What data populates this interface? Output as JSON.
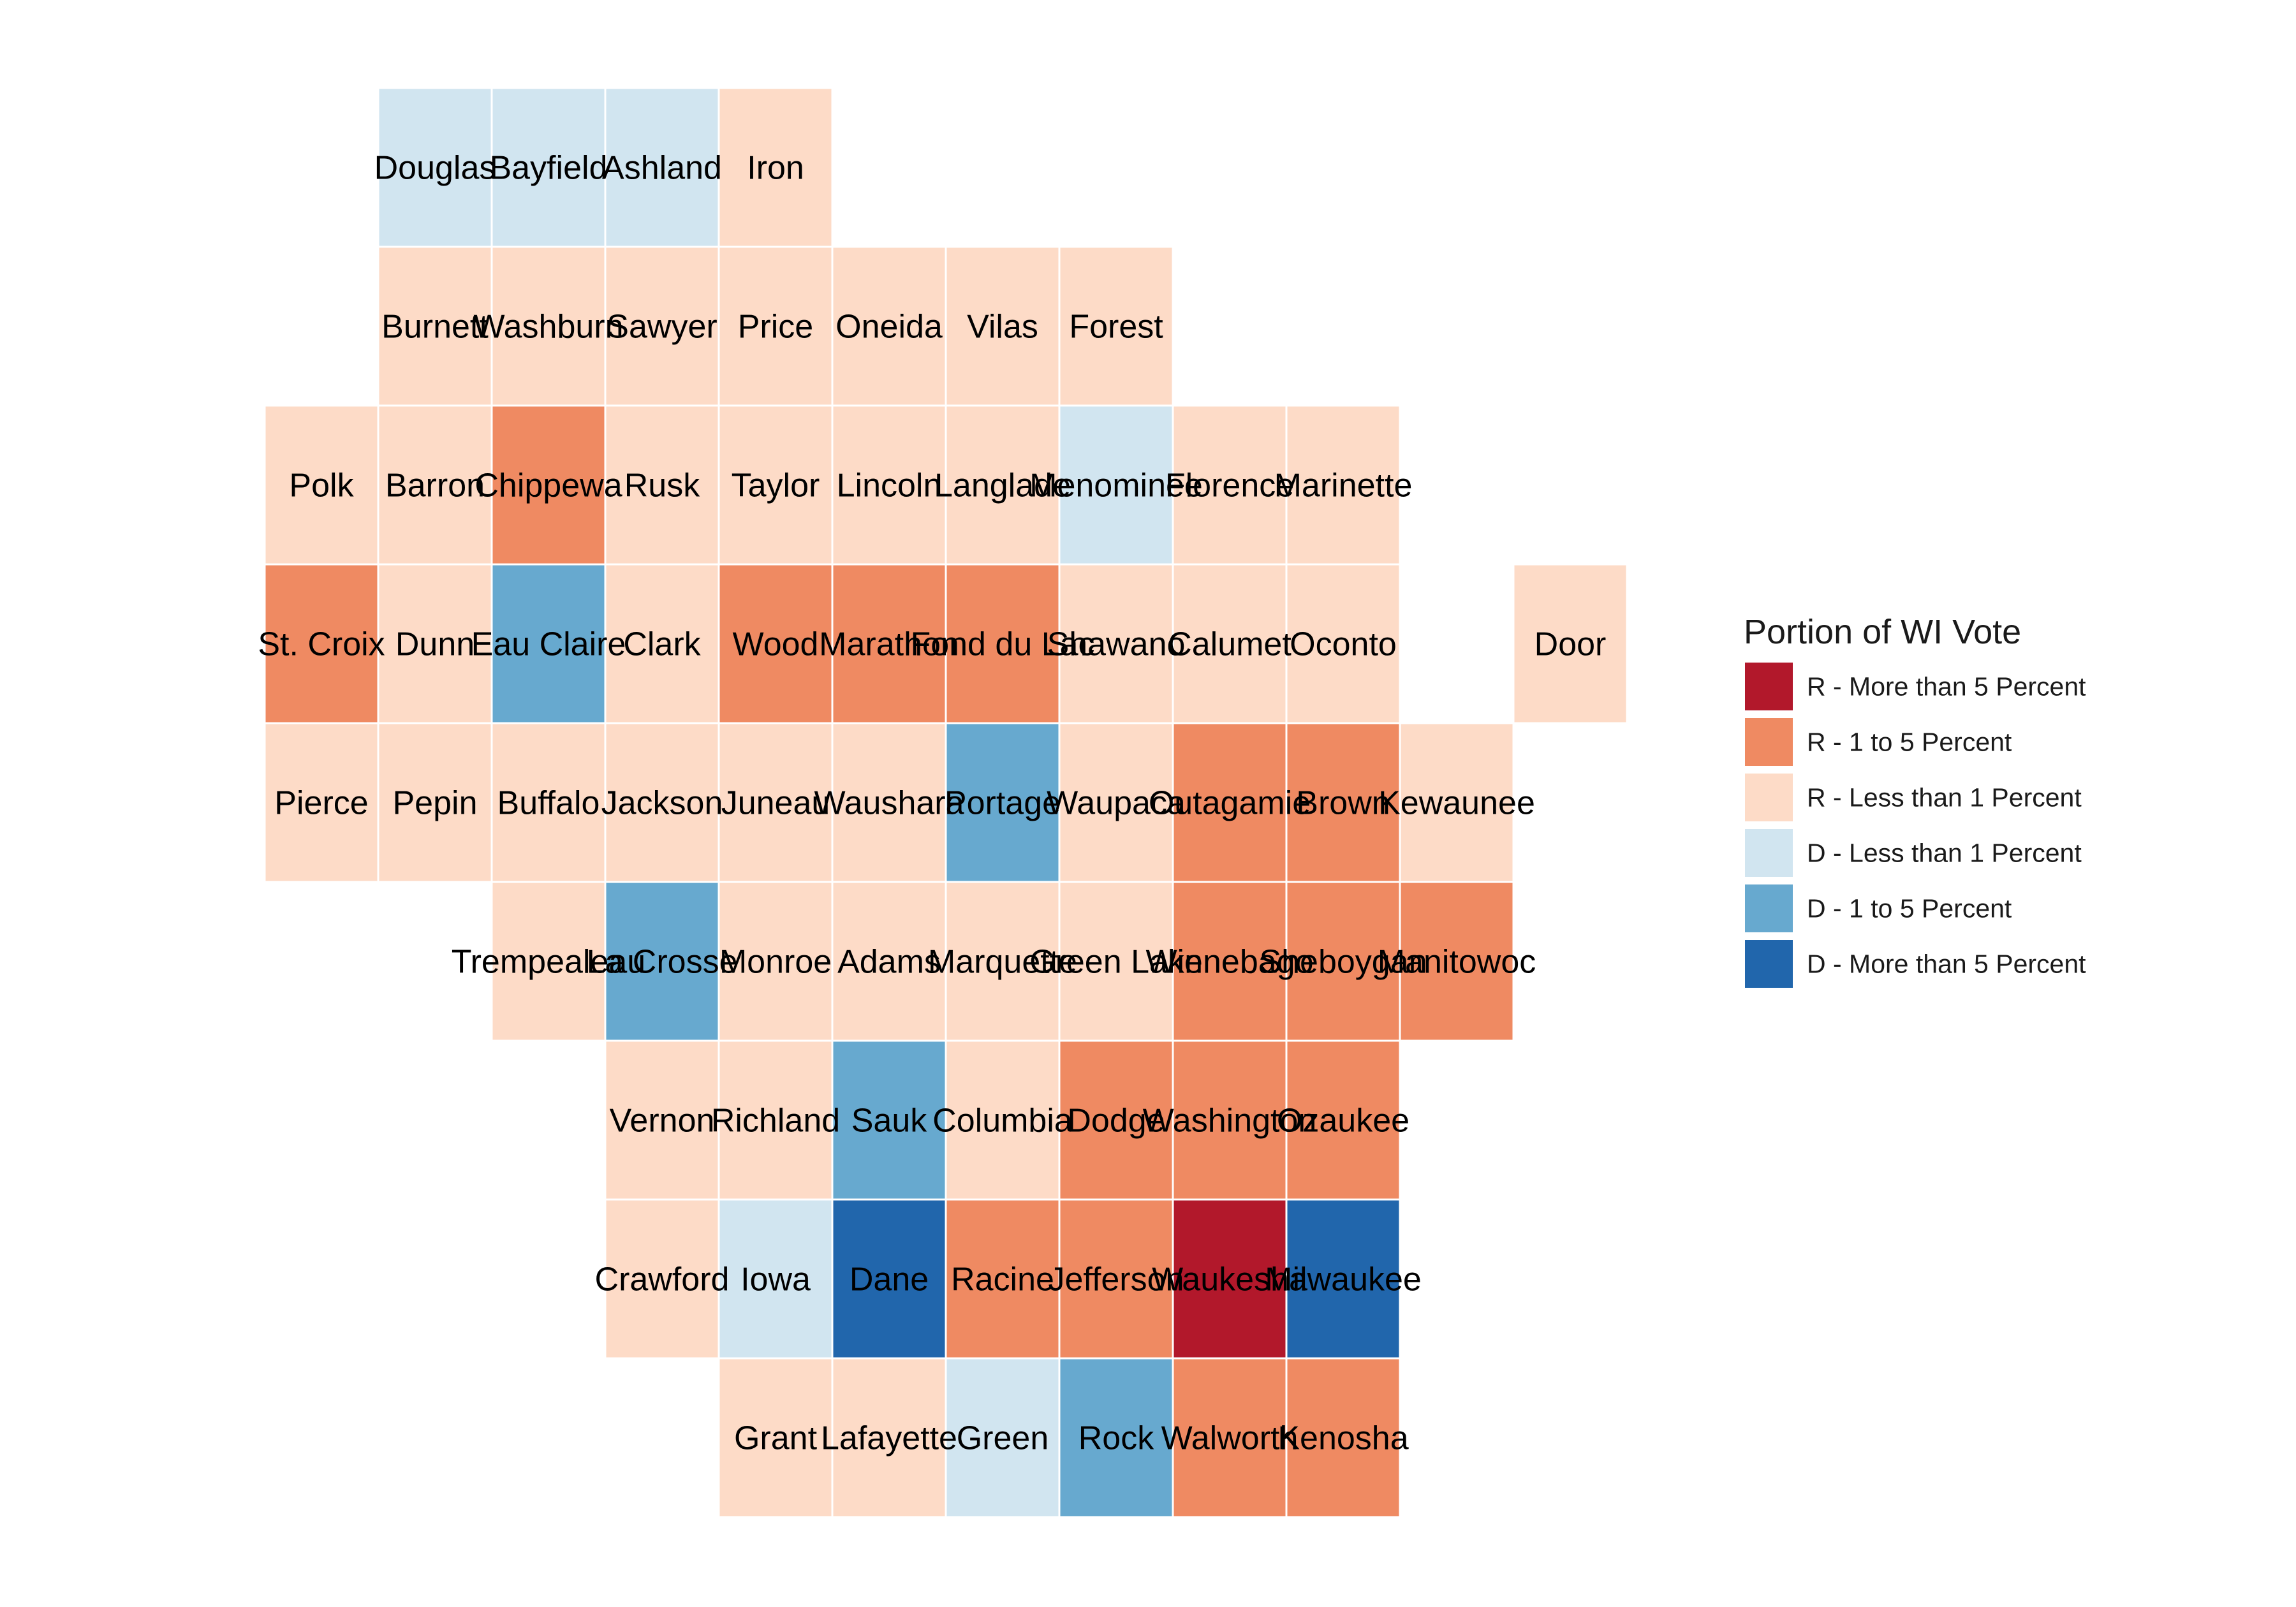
{
  "chart_data": {
    "type": "heatmap",
    "title": "",
    "xlabel": "",
    "ylabel": "",
    "grid": false,
    "legend_position": "right",
    "legend": {
      "title": "Portion of WI Vote",
      "categories": [
        {
          "key": "R5",
          "label": "R - More than 5 Percent",
          "color": "#b2182b"
        },
        {
          "key": "R1",
          "label": "R - 1 to 5 Percent",
          "color": "#ef8a62"
        },
        {
          "key": "R0",
          "label": "R - Less than 1 Percent",
          "color": "#fddbc7"
        },
        {
          "key": "D0",
          "label": "D - Less than 1 Percent",
          "color": "#d1e5f0"
        },
        {
          "key": "D1",
          "label": "D - 1 to 5 Percent",
          "color": "#67a9cf"
        },
        {
          "key": "D5",
          "label": "D - More than 5 Percent",
          "color": "#2166ac"
        }
      ]
    },
    "tiles": [
      {
        "county": "Douglas",
        "col": 1,
        "row": 0,
        "category": "D0"
      },
      {
        "county": "Bayfield",
        "col": 2,
        "row": 0,
        "category": "D0"
      },
      {
        "county": "Ashland",
        "col": 3,
        "row": 0,
        "category": "D0"
      },
      {
        "county": "Iron",
        "col": 4,
        "row": 0,
        "category": "R0"
      },
      {
        "county": "Burnett",
        "col": 1,
        "row": 1,
        "category": "R0"
      },
      {
        "county": "Washburn",
        "col": 2,
        "row": 1,
        "category": "R0"
      },
      {
        "county": "Sawyer",
        "col": 3,
        "row": 1,
        "category": "R0"
      },
      {
        "county": "Price",
        "col": 4,
        "row": 1,
        "category": "R0"
      },
      {
        "county": "Oneida",
        "col": 5,
        "row": 1,
        "category": "R0"
      },
      {
        "county": "Vilas",
        "col": 6,
        "row": 1,
        "category": "R0"
      },
      {
        "county": "Forest",
        "col": 7,
        "row": 1,
        "category": "R0"
      },
      {
        "county": "Polk",
        "col": 0,
        "row": 2,
        "category": "R0"
      },
      {
        "county": "Barron",
        "col": 1,
        "row": 2,
        "category": "R0"
      },
      {
        "county": "Chippewa",
        "col": 2,
        "row": 2,
        "category": "R1"
      },
      {
        "county": "Rusk",
        "col": 3,
        "row": 2,
        "category": "R0"
      },
      {
        "county": "Taylor",
        "col": 4,
        "row": 2,
        "category": "R0"
      },
      {
        "county": "Lincoln",
        "col": 5,
        "row": 2,
        "category": "R0"
      },
      {
        "county": "Langlade",
        "col": 6,
        "row": 2,
        "category": "R0"
      },
      {
        "county": "Menominee",
        "col": 7,
        "row": 2,
        "category": "D0"
      },
      {
        "county": "Florence",
        "col": 8,
        "row": 2,
        "category": "R0"
      },
      {
        "county": "Marinette",
        "col": 9,
        "row": 2,
        "category": "R0"
      },
      {
        "county": "St. Croix",
        "col": 0,
        "row": 3,
        "category": "R1"
      },
      {
        "county": "Dunn",
        "col": 1,
        "row": 3,
        "category": "R0"
      },
      {
        "county": "Eau Claire",
        "col": 2,
        "row": 3,
        "category": "D1"
      },
      {
        "county": "Clark",
        "col": 3,
        "row": 3,
        "category": "R0"
      },
      {
        "county": "Wood",
        "col": 4,
        "row": 3,
        "category": "R1"
      },
      {
        "county": "Marathon",
        "col": 5,
        "row": 3,
        "category": "R1"
      },
      {
        "county": "Fond du Lac",
        "col": 6,
        "row": 3,
        "category": "R1"
      },
      {
        "county": "Shawano",
        "col": 7,
        "row": 3,
        "category": "R0"
      },
      {
        "county": "Calumet",
        "col": 8,
        "row": 3,
        "category": "R0"
      },
      {
        "county": "Oconto",
        "col": 9,
        "row": 3,
        "category": "R0"
      },
      {
        "county": "Door",
        "col": 11,
        "row": 3,
        "category": "R0"
      },
      {
        "county": "Pierce",
        "col": 0,
        "row": 4,
        "category": "R0"
      },
      {
        "county": "Pepin",
        "col": 1,
        "row": 4,
        "category": "R0"
      },
      {
        "county": "Buffalo",
        "col": 2,
        "row": 4,
        "category": "R0"
      },
      {
        "county": "Jackson",
        "col": 3,
        "row": 4,
        "category": "R0"
      },
      {
        "county": "Juneau",
        "col": 4,
        "row": 4,
        "category": "R0"
      },
      {
        "county": "Waushara",
        "col": 5,
        "row": 4,
        "category": "R0"
      },
      {
        "county": "Portage",
        "col": 6,
        "row": 4,
        "category": "D1"
      },
      {
        "county": "Waupaca",
        "col": 7,
        "row": 4,
        "category": "R0"
      },
      {
        "county": "Outagamie",
        "col": 8,
        "row": 4,
        "category": "R1"
      },
      {
        "county": "Brown",
        "col": 9,
        "row": 4,
        "category": "R1"
      },
      {
        "county": "Kewaunee",
        "col": 10,
        "row": 4,
        "category": "R0"
      },
      {
        "county": "Trempealeau",
        "col": 2,
        "row": 5,
        "category": "R0"
      },
      {
        "county": "La Crosse",
        "col": 3,
        "row": 5,
        "category": "D1"
      },
      {
        "county": "Monroe",
        "col": 4,
        "row": 5,
        "category": "R0"
      },
      {
        "county": "Adams",
        "col": 5,
        "row": 5,
        "category": "R0"
      },
      {
        "county": "Marquette",
        "col": 6,
        "row": 5,
        "category": "R0"
      },
      {
        "county": "Green Lake",
        "col": 7,
        "row": 5,
        "category": "R0"
      },
      {
        "county": "Winnebago",
        "col": 8,
        "row": 5,
        "category": "R1"
      },
      {
        "county": "Sheboygan",
        "col": 9,
        "row": 5,
        "category": "R1"
      },
      {
        "county": "Manitowoc",
        "col": 10,
        "row": 5,
        "category": "R1"
      },
      {
        "county": "Vernon",
        "col": 3,
        "row": 6,
        "category": "R0"
      },
      {
        "county": "Richland",
        "col": 4,
        "row": 6,
        "category": "R0"
      },
      {
        "county": "Sauk",
        "col": 5,
        "row": 6,
        "category": "D1"
      },
      {
        "county": "Columbia",
        "col": 6,
        "row": 6,
        "category": "R0"
      },
      {
        "county": "Dodge",
        "col": 7,
        "row": 6,
        "category": "R1"
      },
      {
        "county": "Washington",
        "col": 8,
        "row": 6,
        "category": "R1"
      },
      {
        "county": "Ozaukee",
        "col": 9,
        "row": 6,
        "category": "R1"
      },
      {
        "county": "Crawford",
        "col": 3,
        "row": 7,
        "category": "R0"
      },
      {
        "county": "Iowa",
        "col": 4,
        "row": 7,
        "category": "D0"
      },
      {
        "county": "Dane",
        "col": 5,
        "row": 7,
        "category": "D5"
      },
      {
        "county": "Racine",
        "col": 6,
        "row": 7,
        "category": "R1"
      },
      {
        "county": "Jefferson",
        "col": 7,
        "row": 7,
        "category": "R1"
      },
      {
        "county": "Waukesha",
        "col": 8,
        "row": 7,
        "category": "R5"
      },
      {
        "county": "Milwaukee",
        "col": 9,
        "row": 7,
        "category": "D5"
      },
      {
        "county": "Grant",
        "col": 4,
        "row": 8,
        "category": "R0"
      },
      {
        "county": "Lafayette",
        "col": 5,
        "row": 8,
        "category": "R0"
      },
      {
        "county": "Green",
        "col": 6,
        "row": 8,
        "category": "D0"
      },
      {
        "county": "Rock",
        "col": 7,
        "row": 8,
        "category": "D1"
      },
      {
        "county": "Walworth",
        "col": 8,
        "row": 8,
        "category": "R1"
      },
      {
        "county": "Kenosha",
        "col": 9,
        "row": 8,
        "category": "R1"
      }
    ]
  }
}
